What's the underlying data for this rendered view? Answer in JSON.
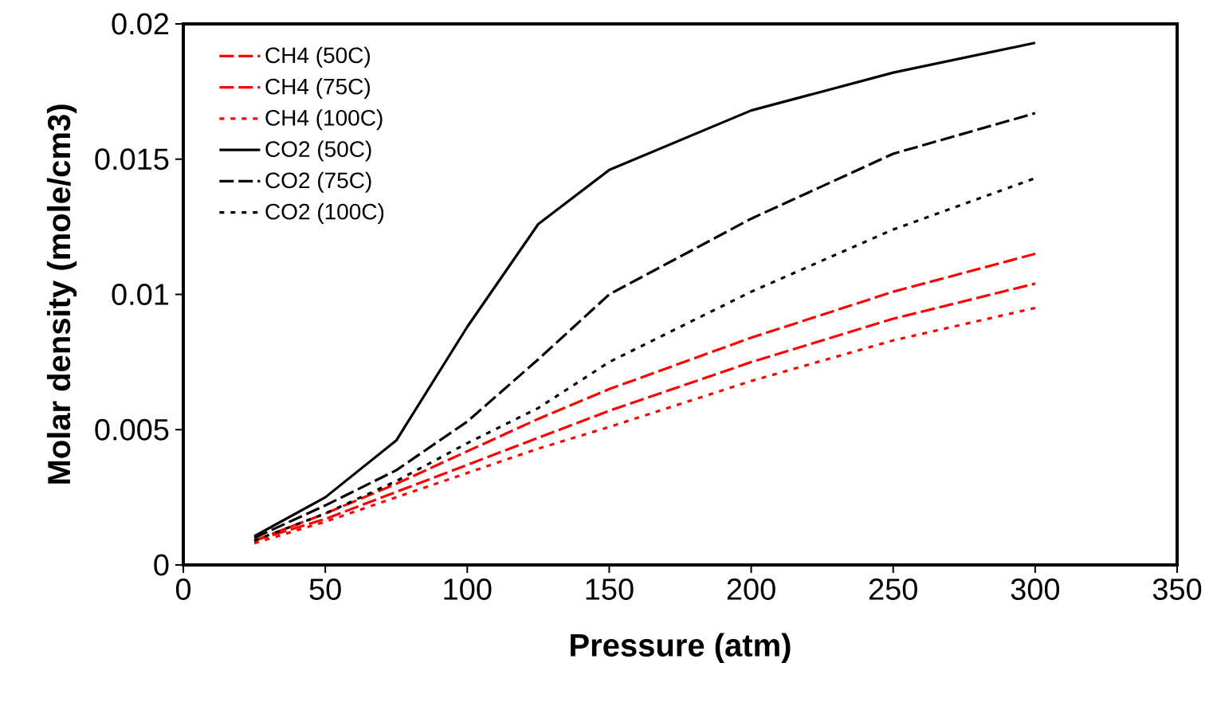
{
  "chart_data": {
    "type": "line",
    "xlabel": "Pressure (atm)",
    "ylabel": "Molar density (mole/cm3)",
    "x": [
      25,
      50,
      75,
      100,
      125,
      150,
      200,
      250,
      300
    ],
    "series": [
      {
        "name": "CH4 (50C)",
        "color": "#ff0000",
        "line_style": "dashed",
        "values": [
          0.0009,
          0.0019,
          0.003,
          0.0042,
          0.0054,
          0.0065,
          0.0084,
          0.0101,
          0.0115
        ]
      },
      {
        "name": "CH4 (75C)",
        "color": "#ff0000",
        "line_style": "dashed",
        "values": [
          0.0009,
          0.0017,
          0.0027,
          0.0037,
          0.0047,
          0.0057,
          0.0075,
          0.0091,
          0.0104
        ]
      },
      {
        "name": "CH4 (100C)",
        "color": "#ff0000",
        "line_style": "dotted",
        "values": [
          0.0008,
          0.0016,
          0.0025,
          0.0034,
          0.0043,
          0.0051,
          0.0068,
          0.0083,
          0.0095
        ]
      },
      {
        "name": "CO2 (50C)",
        "color": "#000000",
        "line_style": "solid",
        "values": [
          0.00106,
          0.0025,
          0.0046,
          0.0088,
          0.0126,
          0.0146,
          0.0168,
          0.0182,
          0.0193
        ]
      },
      {
        "name": "CO2 (75C)",
        "color": "#000000",
        "line_style": "dashed",
        "values": [
          0.001,
          0.0022,
          0.0035,
          0.0053,
          0.0076,
          0.01,
          0.0128,
          0.0152,
          0.0167
        ]
      },
      {
        "name": "CO2 (100C)",
        "color": "#000000",
        "line_style": "dotted",
        "values": [
          0.0009,
          0.0019,
          0.0031,
          0.0045,
          0.0058,
          0.0075,
          0.0101,
          0.0124,
          0.0143
        ]
      }
    ],
    "xlim": [
      0,
      350
    ],
    "ylim": [
      0,
      0.02
    ],
    "xticks": [
      0,
      50,
      100,
      150,
      200,
      250,
      300,
      350
    ],
    "yticks": [
      0,
      0.005,
      0.01,
      0.015,
      0.02
    ],
    "grid": false,
    "legend": "top left",
    "marker": "none"
  }
}
